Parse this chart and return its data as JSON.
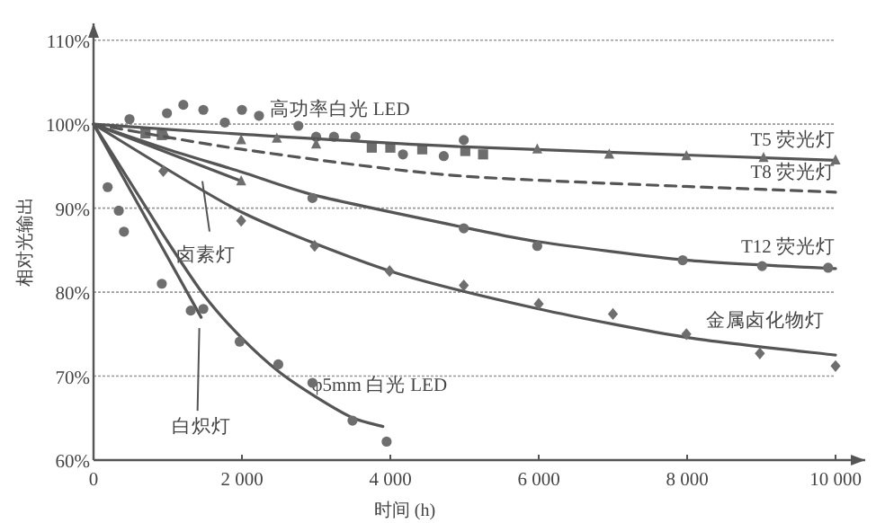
{
  "chart_data": {
    "type": "line",
    "xlabel": "时间 (h)",
    "ylabel": "相对光输出",
    "xlim": [
      0,
      10400
    ],
    "ylim": [
      60,
      112
    ],
    "xticks": [
      0,
      {
        "value": 2000,
        "label": "2 000"
      },
      {
        "value": 4000,
        "label": "4 000"
      },
      {
        "value": 6000,
        "label": "6 000"
      },
      {
        "value": 8000,
        "label": "8 000"
      },
      {
        "value": 10000,
        "label": "10 000"
      }
    ],
    "yticks": [
      {
        "value": 60,
        "label": "60%"
      },
      {
        "value": 70,
        "label": "70%"
      },
      {
        "value": 80,
        "label": "80%"
      },
      {
        "value": 90,
        "label": "90%"
      },
      {
        "value": 100,
        "label": "100%"
      },
      {
        "value": 110,
        "label": "110%"
      }
    ],
    "grid": "y",
    "legend": false,
    "series": [
      {
        "name": "高功率白光 LED",
        "type": "scatter",
        "marker": "circle",
        "color": "#6e6e6e",
        "x": [
          485,
          990,
          1210,
          1480,
          1770,
          2000,
          2230,
          2760,
          3000,
          3240,
          3530,
          4170,
          4720,
          4990
        ],
        "values": [
          100.6,
          101.3,
          102.3,
          101.7,
          100.2,
          101.7,
          101.0,
          99.8,
          98.5,
          98.5,
          98.5,
          96.4,
          96.2,
          98.1
        ]
      },
      {
        "type": "scatter",
        "marker": "square",
        "color": "#6e6e6e",
        "x": [
          700,
          920,
          3750,
          4000,
          4430,
          5010,
          5250
        ],
        "values": [
          98.9,
          98.7,
          97.2,
          97.2,
          97.0,
          96.8,
          96.4
        ]
      },
      {
        "name": "T5 荧光灯",
        "line_style": "solid",
        "color": "#555555",
        "x": [
          0,
          2000,
          5000,
          10000
        ],
        "values": [
          100,
          98.8,
          97.3,
          95.7
        ]
      },
      {
        "type": "scatter",
        "marker": "triangle",
        "color": "#6e6e6e",
        "x": [
          970,
          1990,
          2470,
          3000,
          5980,
          6950,
          7990,
          9030,
          10000
        ],
        "values": [
          98.7,
          98.1,
          98.3,
          97.6,
          97.0,
          96.4,
          96.2,
          96.0,
          95.7
        ]
      },
      {
        "name": "T8 荧光灯",
        "line_style": "dashed",
        "color": "#555555",
        "x": [
          0,
          2000,
          5000,
          10000
        ],
        "values": [
          100,
          97.0,
          93.8,
          91.9
        ]
      },
      {
        "name": "T12 荧光灯",
        "line_style": "solid",
        "color": "#555555",
        "x": [
          0,
          1000,
          2000,
          3000,
          5000,
          6000,
          8000,
          10000
        ],
        "values": [
          100,
          97.0,
          94.3,
          91.5,
          87.7,
          86.0,
          83.8,
          82.8
        ]
      },
      {
        "type": "scatter",
        "marker": "circle",
        "color": "#6e6e6e",
        "x": [
          2950,
          4990,
          5980,
          7940,
          9010,
          9900
        ],
        "values": [
          91.2,
          87.6,
          85.5,
          83.8,
          83.1,
          82.9
        ]
      },
      {
        "name": "卤素灯",
        "line_style": "solid",
        "color": "#555555",
        "x": [
          0,
          2000
        ],
        "values": [
          100,
          93.2
        ]
      },
      {
        "type": "scatter",
        "marker": "triangle",
        "color": "#6e6e6e",
        "x": [
          1990
        ],
        "values": [
          93.2
        ]
      },
      {
        "name": "金属卤化物灯",
        "line_style": "solid",
        "color": "#555555",
        "x": [
          0,
          2000,
          4000,
          6000,
          8000,
          10000
        ],
        "values": [
          100,
          89.5,
          82.5,
          78.0,
          74.6,
          72.5
        ]
      },
      {
        "type": "scatter",
        "marker": "diamond",
        "color": "#6e6e6e",
        "x": [
          940,
          1990,
          2980,
          3990,
          4990,
          6000,
          7000,
          7990,
          8980,
          10000
        ],
        "values": [
          94.4,
          88.5,
          85.5,
          82.5,
          80.8,
          78.6,
          77.4,
          75.0,
          72.7,
          71.2
        ]
      },
      {
        "name": "白炽灯",
        "line_style": "solid",
        "color": "#555555",
        "x": [
          0,
          1450
        ],
        "values": [
          100,
          77.0
        ]
      },
      {
        "type": "scatter",
        "marker": "circle",
        "color": "#6e6e6e",
        "x": [
          190,
          340,
          410,
          920,
          1310
        ],
        "values": [
          92.5,
          89.7,
          87.2,
          81.0,
          77.8
        ]
      },
      {
        "name": "φ5mm 白光 LED",
        "line_style": "solid",
        "color": "#555555",
        "x": [
          0,
          500,
          1000,
          1500,
          2000,
          2500,
          3000,
          3500,
          3900
        ],
        "values": [
          100,
          93.0,
          86.0,
          79.5,
          74.5,
          70.5,
          67.5,
          65.0,
          64.0
        ]
      },
      {
        "type": "scatter",
        "marker": "circle",
        "color": "#6e6e6e",
        "x": [
          1480,
          1970,
          2490,
          2950,
          3490,
          3950
        ],
        "values": [
          78.0,
          74.1,
          71.4,
          69.2,
          64.7,
          62.2
        ]
      }
    ]
  }
}
